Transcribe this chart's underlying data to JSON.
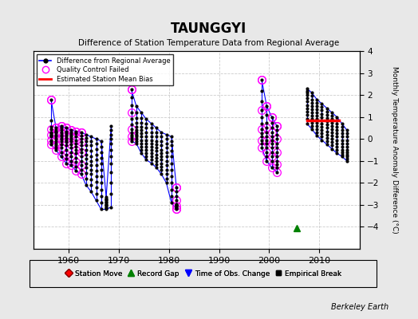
{
  "title": "TAUNGGYI",
  "subtitle": "Difference of Station Temperature Data from Regional Average",
  "ylabel_right": "Monthly Temperature Anomaly Difference (°C)",
  "ylim": [
    -5,
    4
  ],
  "yticks": [
    -4,
    -3,
    -2,
    -1,
    0,
    1,
    2,
    3,
    4
  ],
  "xlim": [
    1953,
    2018
  ],
  "xticks": [
    1960,
    1970,
    1980,
    1990,
    2000,
    2010
  ],
  "background_color": "#e8e8e8",
  "plot_bg_color": "#ffffff",
  "credit": "Berkeley Earth",
  "green_triangle_x": 2005.5,
  "green_triangle_y": -4.05,
  "bias_x_start": 2007.5,
  "bias_x_end": 2014.0,
  "bias_y": 0.85,
  "yearly_data": [
    {
      "year": 1956,
      "values": [
        1.8,
        0.85,
        0.55,
        0.45,
        0.3,
        0.25,
        0.2,
        0.15,
        0.1,
        -0.05,
        -0.15,
        -0.25
      ],
      "all_qc_fail": true
    },
    {
      "year": 1957,
      "values": [
        0.5,
        0.4,
        0.35,
        0.3,
        0.2,
        0.1,
        0.0,
        -0.1,
        -0.2,
        -0.3,
        -0.4,
        -0.5
      ],
      "all_qc_fail": true
    },
    {
      "year": 1958,
      "values": [
        0.6,
        0.5,
        0.4,
        0.3,
        0.2,
        0.1,
        0.0,
        -0.1,
        -0.25,
        -0.4,
        -0.6,
        -0.8
      ],
      "all_qc_fail": true
    },
    {
      "year": 1959,
      "values": [
        0.5,
        0.35,
        0.25,
        0.15,
        0.05,
        -0.05,
        -0.15,
        -0.3,
        -0.5,
        -0.7,
        -0.9,
        -1.1
      ],
      "all_qc_fail": true
    },
    {
      "year": 1960,
      "values": [
        0.4,
        0.3,
        0.2,
        0.1,
        0.0,
        -0.1,
        -0.25,
        -0.4,
        -0.6,
        -0.8,
        -1.0,
        -1.2
      ],
      "all_qc_fail": true
    },
    {
      "year": 1961,
      "values": [
        0.35,
        0.25,
        0.1,
        -0.05,
        -0.2,
        -0.35,
        -0.5,
        -0.65,
        -0.85,
        -1.05,
        -1.25,
        -1.45
      ],
      "all_qc_fail": true
    },
    {
      "year": 1962,
      "values": [
        0.3,
        0.15,
        0.0,
        -0.15,
        -0.3,
        -0.45,
        -0.6,
        -0.8,
        -1.0,
        -1.2,
        -1.4,
        -1.6
      ],
      "all_qc_fail": true
    },
    {
      "year": 1963,
      "values": [
        0.2,
        0.05,
        -0.1,
        -0.3,
        -0.5,
        -0.7,
        -0.9,
        -1.1,
        -1.3,
        -1.55,
        -1.8,
        -2.1
      ],
      "all_qc_fail": false
    },
    {
      "year": 1964,
      "values": [
        0.1,
        -0.1,
        -0.3,
        -0.55,
        -0.8,
        -1.0,
        -1.2,
        -1.4,
        -1.6,
        -1.85,
        -2.1,
        -2.4
      ],
      "all_qc_fail": false
    },
    {
      "year": 1965,
      "values": [
        0.0,
        -0.2,
        -0.45,
        -0.7,
        -0.95,
        -1.2,
        -1.45,
        -1.7,
        -1.95,
        -2.2,
        -2.5,
        -2.8
      ],
      "all_qc_fail": false
    },
    {
      "year": 1966,
      "values": [
        -0.1,
        -0.35,
        -0.6,
        -0.85,
        -1.1,
        -1.4,
        -1.7,
        -2.0,
        -2.3,
        -2.6,
        -2.9,
        -3.2
      ],
      "all_qc_fail": false
    },
    {
      "year": 1967,
      "values": [
        -3.2,
        -3.15,
        -3.1,
        -3.05,
        -3.0,
        -2.95,
        -2.9,
        -2.85,
        -2.8,
        -2.75,
        -2.7,
        -2.65
      ],
      "all_qc_fail": false
    },
    {
      "year": 1968,
      "values": [
        0.6,
        0.4,
        0.2,
        0.0,
        -0.2,
        -0.5,
        -0.8,
        -1.1,
        -1.5,
        -2.0,
        -2.5,
        -3.1
      ],
      "all_qc_fail": false
    },
    {
      "year": 1972,
      "values": [
        2.25,
        1.9,
        1.55,
        1.2,
        0.9,
        0.65,
        0.45,
        0.3,
        0.2,
        0.1,
        0.0,
        -0.1
      ],
      "all_qc_fail": true
    },
    {
      "year": 1973,
      "values": [
        1.5,
        1.2,
        0.95,
        0.75,
        0.55,
        0.4,
        0.3,
        0.2,
        0.1,
        0.0,
        -0.1,
        -0.2
      ],
      "all_qc_fail": false
    },
    {
      "year": 1974,
      "values": [
        1.2,
        0.95,
        0.75,
        0.55,
        0.4,
        0.25,
        0.1,
        -0.05,
        -0.2,
        -0.35,
        -0.5,
        -0.65
      ],
      "all_qc_fail": false
    },
    {
      "year": 1975,
      "values": [
        0.9,
        0.7,
        0.5,
        0.3,
        0.1,
        -0.05,
        -0.2,
        -0.35,
        -0.5,
        -0.65,
        -0.8,
        -0.95
      ],
      "all_qc_fail": false
    },
    {
      "year": 1976,
      "values": [
        0.7,
        0.5,
        0.3,
        0.1,
        -0.05,
        -0.2,
        -0.35,
        -0.5,
        -0.65,
        -0.8,
        -0.95,
        -1.1
      ],
      "all_qc_fail": false
    },
    {
      "year": 1977,
      "values": [
        0.5,
        0.3,
        0.1,
        -0.1,
        -0.25,
        -0.4,
        -0.55,
        -0.7,
        -0.85,
        -1.0,
        -1.15,
        -1.3
      ],
      "all_qc_fail": false
    },
    {
      "year": 1978,
      "values": [
        0.3,
        0.1,
        -0.1,
        -0.3,
        -0.5,
        -0.65,
        -0.8,
        -0.95,
        -1.1,
        -1.25,
        -1.4,
        -1.6
      ],
      "all_qc_fail": false
    },
    {
      "year": 1979,
      "values": [
        0.2,
        0.0,
        -0.2,
        -0.4,
        -0.6,
        -0.8,
        -1.0,
        -1.2,
        -1.4,
        -1.6,
        -1.8,
        -2.0
      ],
      "all_qc_fail": false
    },
    {
      "year": 1980,
      "values": [
        0.1,
        -0.1,
        -0.3,
        -0.55,
        -0.8,
        -1.1,
        -1.4,
        -1.7,
        -2.0,
        -2.3,
        -2.6,
        -2.9
      ],
      "all_qc_fail": false
    },
    {
      "year": 1981,
      "values": [
        -2.2,
        -2.4,
        -2.6,
        -2.8,
        -3.0,
        -3.1,
        -3.2,
        -3.15,
        -3.1,
        -3.05,
        -3.0,
        -2.95
      ],
      "all_qc_fail": true
    },
    {
      "year": 1998,
      "values": [
        2.7,
        2.2,
        1.7,
        1.3,
        1.0,
        0.7,
        0.45,
        0.25,
        0.1,
        -0.05,
        -0.2,
        -0.4
      ],
      "all_qc_fail": true
    },
    {
      "year": 1999,
      "values": [
        1.5,
        1.1,
        0.75,
        0.5,
        0.3,
        0.1,
        -0.05,
        -0.2,
        -0.4,
        -0.6,
        -0.8,
        -1.0
      ],
      "all_qc_fail": true
    },
    {
      "year": 2000,
      "values": [
        1.0,
        0.75,
        0.5,
        0.3,
        0.1,
        -0.05,
        -0.2,
        -0.4,
        -0.6,
        -0.8,
        -1.0,
        -1.3
      ],
      "all_qc_fail": true
    },
    {
      "year": 2001,
      "values": [
        0.6,
        0.4,
        0.2,
        0.0,
        -0.2,
        -0.4,
        -0.6,
        -0.8,
        -1.0,
        -1.15,
        -1.3,
        -1.5
      ],
      "all_qc_fail": true
    },
    {
      "year": 2007,
      "values": [
        2.3,
        2.2,
        2.1,
        2.0,
        1.85,
        1.7,
        1.55,
        1.4,
        1.25,
        1.1,
        0.9,
        0.7
      ],
      "all_qc_fail": false
    },
    {
      "year": 2008,
      "values": [
        2.1,
        1.95,
        1.8,
        1.65,
        1.5,
        1.35,
        1.2,
        1.05,
        0.9,
        0.75,
        0.6,
        0.45
      ],
      "all_qc_fail": false
    },
    {
      "year": 2009,
      "values": [
        1.8,
        1.65,
        1.5,
        1.35,
        1.2,
        1.05,
        0.9,
        0.75,
        0.6,
        0.45,
        0.3,
        0.15
      ],
      "all_qc_fail": false
    },
    {
      "year": 2010,
      "values": [
        1.6,
        1.45,
        1.3,
        1.15,
        1.0,
        0.85,
        0.7,
        0.55,
        0.4,
        0.25,
        0.1,
        -0.05
      ],
      "all_qc_fail": false
    },
    {
      "year": 2011,
      "values": [
        1.4,
        1.25,
        1.1,
        0.95,
        0.8,
        0.65,
        0.5,
        0.35,
        0.2,
        0.05,
        -0.1,
        -0.25
      ],
      "all_qc_fail": false
    },
    {
      "year": 2012,
      "values": [
        1.2,
        1.05,
        0.9,
        0.75,
        0.6,
        0.45,
        0.3,
        0.15,
        0.0,
        -0.15,
        -0.3,
        -0.45
      ],
      "all_qc_fail": false
    },
    {
      "year": 2013,
      "values": [
        1.0,
        0.85,
        0.7,
        0.55,
        0.4,
        0.25,
        0.1,
        -0.05,
        -0.2,
        -0.35,
        -0.5,
        -0.65
      ],
      "all_qc_fail": false
    },
    {
      "year": 2014,
      "values": [
        0.7,
        0.55,
        0.4,
        0.25,
        0.1,
        -0.05,
        -0.2,
        -0.35,
        -0.5,
        -0.6,
        -0.7,
        -0.8
      ],
      "all_qc_fail": false
    },
    {
      "year": 2015,
      "values": [
        0.4,
        0.25,
        0.1,
        -0.05,
        -0.2,
        -0.35,
        -0.5,
        -0.6,
        -0.7,
        -0.8,
        -0.9,
        -1.0
      ],
      "all_qc_fail": false
    }
  ],
  "segment_year_ranges": [
    [
      1956,
      1968
    ],
    [
      1972,
      1981
    ],
    [
      1998,
      2001
    ],
    [
      2007,
      2015
    ]
  ],
  "qc_fail_years": [
    1956,
    1957,
    1958,
    1959,
    1960,
    1961,
    1962,
    1972,
    1981,
    1998,
    1999,
    2000,
    2001
  ]
}
